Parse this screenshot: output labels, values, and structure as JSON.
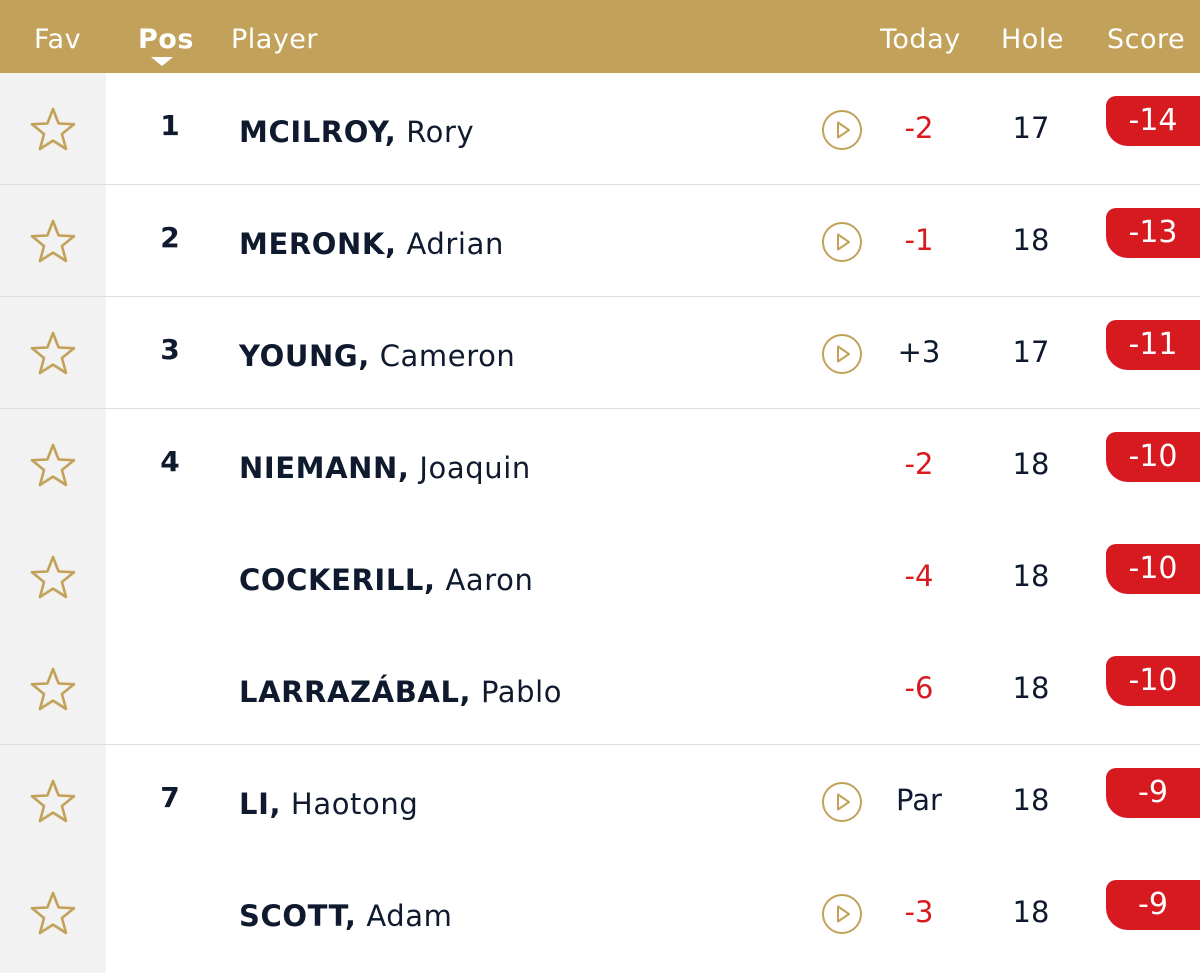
{
  "header": {
    "fav": "Fav",
    "pos": "Pos",
    "player": "Player",
    "today": "Today",
    "hole": "Hole",
    "score": "Score"
  },
  "colors": {
    "header_gold": "#c2a25a",
    "star_gold": "#c2a25a",
    "score_red": "#d71920",
    "text_navy": "#0f1a2e"
  },
  "rows": [
    {
      "pos": "1",
      "last": "MCILROY,",
      "first": "Rory",
      "has_play": true,
      "today": "-2",
      "today_type": "neg",
      "hole": "17",
      "score": "-14"
    },
    {
      "pos": "2",
      "last": "MERONK,",
      "first": "Adrian",
      "has_play": true,
      "today": "-1",
      "today_type": "neg",
      "hole": "18",
      "score": "-13"
    },
    {
      "pos": "3",
      "last": "YOUNG,",
      "first": "Cameron",
      "has_play": true,
      "today": "+3",
      "today_type": "pos",
      "hole": "17",
      "score": "-11"
    },
    {
      "pos": "4",
      "last": "NIEMANN,",
      "first": "Joaquin",
      "has_play": false,
      "today": "-2",
      "today_type": "neg",
      "hole": "18",
      "score": "-10"
    },
    {
      "pos": "",
      "last": "COCKERILL,",
      "first": "Aaron",
      "has_play": false,
      "today": "-4",
      "today_type": "neg",
      "hole": "18",
      "score": "-10"
    },
    {
      "pos": "",
      "last": "LARRAZÁBAL,",
      "first": "Pablo",
      "has_play": false,
      "today": "-6",
      "today_type": "neg",
      "hole": "18",
      "score": "-10"
    },
    {
      "pos": "7",
      "last": "LI,",
      "first": "Haotong",
      "has_play": true,
      "today": "Par",
      "today_type": "pos",
      "hole": "18",
      "score": "-9"
    },
    {
      "pos": "",
      "last": "SCOTT,",
      "first": "Adam",
      "has_play": true,
      "today": "-3",
      "today_type": "neg",
      "hole": "18",
      "score": "-9"
    }
  ]
}
